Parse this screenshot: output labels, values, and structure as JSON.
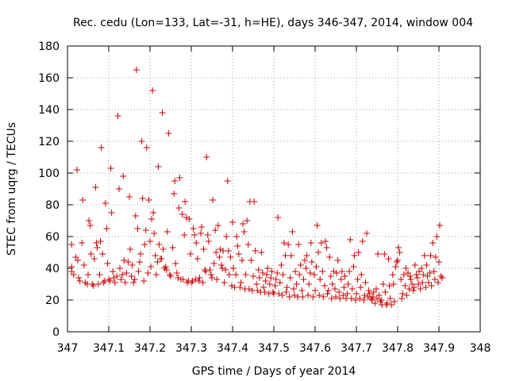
{
  "chart_data": {
    "type": "scatter",
    "title": "Rec. cedu (Lon=133, Lat=-31, h=HE), days 346-347, 2014, window 004",
    "xlabel": "GPS time / Days of year 2014",
    "ylabel": "STEC from uqrg / TECUs",
    "xlim": [
      347,
      348
    ],
    "ylim": [
      0,
      180
    ],
    "xticks": [
      347,
      347.1,
      347.2,
      347.3,
      347.4,
      347.5,
      347.6,
      347.7,
      347.8,
      347.9,
      348
    ],
    "xtick_labels": [
      "347",
      "347.1",
      "347.2",
      "347.3",
      "347.4",
      "347.5",
      "347.6",
      "347.7",
      "347.8",
      "347.9",
      "348"
    ],
    "yticks": [
      0,
      20,
      40,
      60,
      80,
      100,
      120,
      140,
      160,
      180
    ],
    "ytick_labels": [
      "0",
      "20",
      "40",
      "60",
      "80",
      "100",
      "120",
      "140",
      "160",
      "180"
    ],
    "grid": true,
    "marker_color": "#cc0000",
    "grid_color": "#a0a0a0",
    "points": [
      [
        347.01,
        55
      ],
      [
        347.01,
        41
      ],
      [
        347.01,
        38
      ],
      [
        347.015,
        36
      ],
      [
        347.02,
        47
      ],
      [
        347.023,
        102
      ],
      [
        347.025,
        45
      ],
      [
        347.027,
        34
      ],
      [
        347.03,
        32
      ],
      [
        347.035,
        56
      ],
      [
        347.037,
        83
      ],
      [
        347.04,
        42
      ],
      [
        347.043,
        31
      ],
      [
        347.048,
        30
      ],
      [
        347.05,
        36
      ],
      [
        347.052,
        70
      ],
      [
        347.055,
        67
      ],
      [
        347.057,
        49
      ],
      [
        347.06,
        30
      ],
      [
        347.063,
        29
      ],
      [
        347.065,
        46
      ],
      [
        347.068,
        91
      ],
      [
        347.07,
        56
      ],
      [
        347.072,
        53
      ],
      [
        347.075,
        30
      ],
      [
        347.078,
        36
      ],
      [
        347.08,
        57
      ],
      [
        347.082,
        116
      ],
      [
        347.085,
        49
      ],
      [
        347.087,
        31
      ],
      [
        347.09,
        32
      ],
      [
        347.092,
        81
      ],
      [
        347.095,
        65
      ],
      [
        347.097,
        43
      ],
      [
        347.1,
        33
      ],
      [
        347.103,
        32
      ],
      [
        347.105,
        103
      ],
      [
        347.107,
        75
      ],
      [
        347.11,
        38
      ],
      [
        347.112,
        34
      ],
      [
        347.115,
        31
      ],
      [
        347.12,
        35
      ],
      [
        347.122,
        136
      ],
      [
        347.125,
        90
      ],
      [
        347.127,
        40
      ],
      [
        347.13,
        33
      ],
      [
        347.133,
        36
      ],
      [
        347.135,
        98
      ],
      [
        347.137,
        45
      ],
      [
        347.14,
        31
      ],
      [
        347.143,
        37
      ],
      [
        347.147,
        44
      ],
      [
        347.15,
        85
      ],
      [
        347.152,
        52
      ],
      [
        347.155,
        35
      ],
      [
        347.157,
        42
      ],
      [
        347.16,
        31
      ],
      [
        347.163,
        33
      ],
      [
        347.165,
        73
      ],
      [
        347.167,
        165
      ],
      [
        347.17,
        65
      ],
      [
        347.172,
        38
      ],
      [
        347.175,
        44
      ],
      [
        347.177,
        49
      ],
      [
        347.18,
        120
      ],
      [
        347.182,
        84
      ],
      [
        347.185,
        32
      ],
      [
        347.187,
        55
      ],
      [
        347.19,
        64
      ],
      [
        347.192,
        116
      ],
      [
        347.195,
        37
      ],
      [
        347.197,
        83
      ],
      [
        347.2,
        57
      ],
      [
        347.202,
        41
      ],
      [
        347.204,
        71
      ],
      [
        347.206,
        152
      ],
      [
        347.208,
        75
      ],
      [
        347.21,
        62
      ],
      [
        347.213,
        48
      ],
      [
        347.215,
        36
      ],
      [
        347.218,
        44
      ],
      [
        347.22,
        104
      ],
      [
        347.222,
        55
      ],
      [
        347.225,
        46
      ],
      [
        347.228,
        46
      ],
      [
        347.23,
        138
      ],
      [
        347.232,
        52
      ],
      [
        347.235,
        40
      ],
      [
        347.238,
        41
      ],
      [
        347.24,
        39
      ],
      [
        347.242,
        63
      ],
      [
        347.245,
        125
      ],
      [
        347.248,
        36
      ],
      [
        347.25,
        35
      ],
      [
        347.255,
        53
      ],
      [
        347.258,
        87
      ],
      [
        347.26,
        95
      ],
      [
        347.262,
        43
      ],
      [
        347.265,
        37
      ],
      [
        347.268,
        34
      ],
      [
        347.27,
        78
      ],
      [
        347.272,
        97
      ],
      [
        347.275,
        33
      ],
      [
        347.278,
        74
      ],
      [
        347.28,
        33
      ],
      [
        347.283,
        61
      ],
      [
        347.285,
        82
      ],
      [
        347.288,
        72
      ],
      [
        347.29,
        31
      ],
      [
        347.293,
        32
      ],
      [
        347.295,
        71
      ],
      [
        347.298,
        49
      ],
      [
        347.3,
        31
      ],
      [
        347.303,
        32
      ],
      [
        347.305,
        65
      ],
      [
        347.308,
        61
      ],
      [
        347.31,
        33
      ],
      [
        347.312,
        56
      ],
      [
        347.315,
        46
      ],
      [
        347.318,
        32
      ],
      [
        347.32,
        34
      ],
      [
        347.323,
        62
      ],
      [
        347.325,
        66
      ],
      [
        347.328,
        31
      ],
      [
        347.33,
        52
      ],
      [
        347.333,
        39
      ],
      [
        347.335,
        38
      ],
      [
        347.337,
        110
      ],
      [
        347.34,
        61
      ],
      [
        347.342,
        57
      ],
      [
        347.345,
        39
      ],
      [
        347.348,
        36
      ],
      [
        347.35,
        34
      ],
      [
        347.352,
        83
      ],
      [
        347.355,
        43
      ],
      [
        347.358,
        64
      ],
      [
        347.36,
        50
      ],
      [
        347.362,
        33
      ],
      [
        347.365,
        67
      ],
      [
        347.368,
        47
      ],
      [
        347.37,
        52
      ],
      [
        347.373,
        42
      ],
      [
        347.375,
        40
      ],
      [
        347.377,
        51
      ],
      [
        347.38,
        31
      ],
      [
        347.383,
        39
      ],
      [
        347.385,
        60
      ],
      [
        347.388,
        95
      ],
      [
        347.39,
        51
      ],
      [
        347.392,
        36
      ],
      [
        347.395,
        47
      ],
      [
        347.398,
        29
      ],
      [
        347.4,
        69
      ],
      [
        347.402,
        40
      ],
      [
        347.405,
        28
      ],
      [
        347.408,
        36
      ],
      [
        347.41,
        60
      ],
      [
        347.412,
        54
      ],
      [
        347.415,
        49
      ],
      [
        347.418,
        28
      ],
      [
        347.42,
        31
      ],
      [
        347.423,
        45
      ],
      [
        347.425,
        68
      ],
      [
        347.428,
        63
      ],
      [
        347.43,
        27
      ],
      [
        347.432,
        36
      ],
      [
        347.435,
        70
      ],
      [
        347.438,
        55
      ],
      [
        347.44,
        27
      ],
      [
        347.442,
        82
      ],
      [
        347.445,
        45
      ],
      [
        347.448,
        26
      ],
      [
        347.45,
        35
      ],
      [
        347.452,
        82
      ],
      [
        347.455,
        51
      ],
      [
        347.458,
        30
      ],
      [
        347.46,
        26
      ],
      [
        347.463,
        39
      ],
      [
        347.465,
        34
      ],
      [
        347.468,
        25
      ],
      [
        347.47,
        50
      ],
      [
        347.473,
        37
      ],
      [
        347.475,
        28
      ],
      [
        347.478,
        25
      ],
      [
        347.48,
        32
      ],
      [
        347.483,
        36
      ],
      [
        347.485,
        40
      ],
      [
        347.488,
        24
      ],
      [
        347.49,
        30
      ],
      [
        347.493,
        34
      ],
      [
        347.495,
        38
      ],
      [
        347.498,
        25
      ],
      [
        347.5,
        24
      ],
      [
        347.503,
        29
      ],
      [
        347.505,
        33
      ],
      [
        347.508,
        37
      ],
      [
        347.51,
        72
      ],
      [
        347.512,
        24
      ],
      [
        347.515,
        31
      ],
      [
        347.518,
        42
      ],
      [
        347.52,
        23
      ],
      [
        347.522,
        36
      ],
      [
        347.525,
        56
      ],
      [
        347.528,
        48
      ],
      [
        347.53,
        25
      ],
      [
        347.532,
        28
      ],
      [
        347.535,
        55
      ],
      [
        347.538,
        22
      ],
      [
        347.54,
        34
      ],
      [
        347.542,
        48
      ],
      [
        347.545,
        63
      ],
      [
        347.548,
        27
      ],
      [
        347.55,
        23
      ],
      [
        347.552,
        38
      ],
      [
        347.555,
        30
      ],
      [
        347.558,
        22
      ],
      [
        347.56,
        55
      ],
      [
        347.562,
        36
      ],
      [
        347.565,
        42
      ],
      [
        347.568,
        26
      ],
      [
        347.57,
        22
      ],
      [
        347.572,
        33
      ],
      [
        347.575,
        45
      ],
      [
        347.578,
        40
      ],
      [
        347.58,
        48
      ],
      [
        347.583,
        23
      ],
      [
        347.585,
        30
      ],
      [
        347.588,
        37
      ],
      [
        347.59,
        56
      ],
      [
        347.592,
        44
      ],
      [
        347.595,
        22
      ],
      [
        347.598,
        36
      ],
      [
        347.6,
        26
      ],
      [
        347.603,
        41
      ],
      [
        347.605,
        67
      ],
      [
        347.608,
        50
      ],
      [
        347.61,
        23
      ],
      [
        347.612,
        33
      ],
      [
        347.615,
        56
      ],
      [
        347.618,
        38
      ],
      [
        347.62,
        22
      ],
      [
        347.623,
        29
      ],
      [
        347.625,
        57
      ],
      [
        347.628,
        53
      ],
      [
        347.63,
        24
      ],
      [
        347.632,
        26
      ],
      [
        347.635,
        47
      ],
      [
        347.638,
        35
      ],
      [
        347.64,
        21
      ],
      [
        347.642,
        30
      ],
      [
        347.645,
        38
      ],
      [
        347.648,
        27
      ],
      [
        347.65,
        22
      ],
      [
        347.652,
        37
      ],
      [
        347.655,
        45
      ],
      [
        347.658,
        25
      ],
      [
        347.66,
        21
      ],
      [
        347.663,
        33
      ],
      [
        347.665,
        38
      ],
      [
        347.668,
        23
      ],
      [
        347.67,
        28
      ],
      [
        347.672,
        35
      ],
      [
        347.675,
        21
      ],
      [
        347.678,
        24
      ],
      [
        347.68,
        30
      ],
      [
        347.683,
        38
      ],
      [
        347.685,
        58
      ],
      [
        347.688,
        21
      ],
      [
        347.69,
        27
      ],
      [
        347.693,
        41
      ],
      [
        347.695,
        48
      ],
      [
        347.698,
        20
      ],
      [
        347.7,
        24
      ],
      [
        347.703,
        33
      ],
      [
        347.705,
        50
      ],
      [
        347.708,
        21
      ],
      [
        347.71,
        28
      ],
      [
        347.712,
        36
      ],
      [
        347.715,
        57
      ],
      [
        347.718,
        20
      ],
      [
        347.72,
        23
      ],
      [
        347.722,
        31
      ],
      [
        347.725,
        62
      ],
      [
        347.728,
        22
      ],
      [
        347.73,
        26
      ],
      [
        347.732,
        24
      ],
      [
        347.735,
        21
      ],
      [
        347.738,
        20
      ],
      [
        347.74,
        22
      ],
      [
        347.742,
        25
      ],
      [
        347.745,
        18
      ],
      [
        347.748,
        27
      ],
      [
        347.75,
        21
      ],
      [
        347.752,
        49
      ],
      [
        347.755,
        23
      ],
      [
        347.758,
        19
      ],
      [
        347.76,
        20
      ],
      [
        347.762,
        17
      ],
      [
        347.765,
        30
      ],
      [
        347.768,
        49
      ],
      [
        347.77,
        25
      ],
      [
        347.772,
        17
      ],
      [
        347.775,
        18
      ],
      [
        347.778,
        46
      ],
      [
        347.78,
        29
      ],
      [
        347.782,
        21
      ],
      [
        347.785,
        17
      ],
      [
        347.788,
        36
      ],
      [
        347.79,
        30
      ],
      [
        347.792,
        19
      ],
      [
        347.795,
        41
      ],
      [
        347.798,
        44
      ],
      [
        347.8,
        45
      ],
      [
        347.802,
        53
      ],
      [
        347.805,
        50
      ],
      [
        347.808,
        33
      ],
      [
        347.81,
        21
      ],
      [
        347.812,
        24
      ],
      [
        347.815,
        36
      ],
      [
        347.818,
        29
      ],
      [
        347.82,
        40
      ],
      [
        347.822,
        23
      ],
      [
        347.825,
        37
      ],
      [
        347.828,
        27
      ],
      [
        347.83,
        35
      ],
      [
        347.832,
        33
      ],
      [
        347.835,
        30
      ],
      [
        347.838,
        26
      ],
      [
        347.84,
        28
      ],
      [
        347.842,
        42
      ],
      [
        347.845,
        36
      ],
      [
        347.848,
        34
      ],
      [
        347.85,
        30
      ],
      [
        347.852,
        38
      ],
      [
        347.855,
        27
      ],
      [
        347.858,
        40
      ],
      [
        347.86,
        31
      ],
      [
        347.862,
        36
      ],
      [
        347.865,
        48
      ],
      [
        347.868,
        28
      ],
      [
        347.87,
        42
      ],
      [
        347.872,
        35
      ],
      [
        347.875,
        31
      ],
      [
        347.878,
        37
      ],
      [
        347.88,
        48
      ],
      [
        347.882,
        29
      ],
      [
        347.885,
        56
      ],
      [
        347.888,
        38
      ],
      [
        347.89,
        33
      ],
      [
        347.892,
        47
      ],
      [
        347.895,
        60
      ],
      [
        347.898,
        31
      ],
      [
        347.9,
        44
      ],
      [
        347.902,
        67
      ],
      [
        347.905,
        35
      ],
      [
        347.908,
        34
      ]
    ]
  }
}
